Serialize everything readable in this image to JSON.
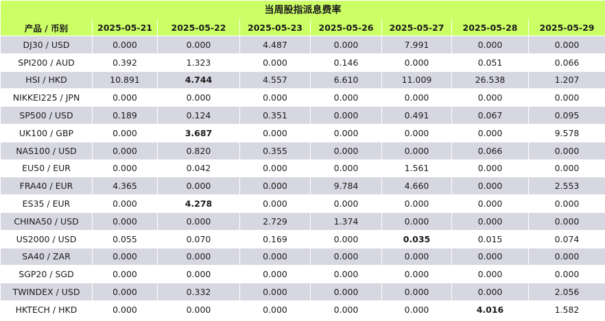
{
  "title": "当周股指派息费率",
  "columns": [
    "产品 / 币别",
    "2025-05-21",
    "2025-05-22",
    "2025-05-23",
    "2025-05-26",
    "2025-05-27",
    "2025-05-28",
    "2025-05-29"
  ],
  "rows": [
    {
      "product": "DJ30 / USD",
      "values": [
        "0.000",
        "0.000",
        "4.487",
        "0.000",
        "7.991",
        "0.000",
        "0.000"
      ],
      "bold": []
    },
    {
      "product": "SPI200 / AUD",
      "values": [
        "0.392",
        "1.323",
        "0.000",
        "0.146",
        "0.000",
        "0.051",
        "0.066"
      ],
      "bold": []
    },
    {
      "product": "HSI / HKD",
      "values": [
        "10.891",
        "4.744",
        "4.557",
        "6.610",
        "11.009",
        "26.538",
        "1.207"
      ],
      "bold": [
        1
      ]
    },
    {
      "product": "NIKKEI225 / JPN",
      "values": [
        "0.000",
        "0.000",
        "0.000",
        "0.000",
        "0.000",
        "0.000",
        "0.000"
      ],
      "bold": []
    },
    {
      "product": "SP500 / USD",
      "values": [
        "0.189",
        "0.124",
        "0.351",
        "0.000",
        "0.491",
        "0.067",
        "0.095"
      ],
      "bold": []
    },
    {
      "product": "UK100 / GBP",
      "values": [
        "0.000",
        "3.687",
        "0.000",
        "0.000",
        "0.000",
        "0.000",
        "9.578"
      ],
      "bold": [
        1
      ]
    },
    {
      "product": "NAS100 / USD",
      "values": [
        "0.000",
        "0.820",
        "0.355",
        "0.000",
        "0.000",
        "0.066",
        "0.000"
      ],
      "bold": []
    },
    {
      "product": "EU50 / EUR",
      "values": [
        "0.000",
        "0.042",
        "0.000",
        "0.000",
        "1.561",
        "0.000",
        "0.000"
      ],
      "bold": []
    },
    {
      "product": "FRA40 / EUR",
      "values": [
        "4.365",
        "0.000",
        "0.000",
        "9.784",
        "4.660",
        "0.000",
        "2.553"
      ],
      "bold": []
    },
    {
      "product": "ES35 / EUR",
      "values": [
        "0.000",
        "4.278",
        "0.000",
        "0.000",
        "0.000",
        "0.000",
        "0.000"
      ],
      "bold": [
        1
      ]
    },
    {
      "product": "CHINA50 / USD",
      "values": [
        "0.000",
        "0.000",
        "2.729",
        "1.374",
        "0.000",
        "0.000",
        "0.000"
      ],
      "bold": []
    },
    {
      "product": "US2000 / USD",
      "values": [
        "0.055",
        "0.070",
        "0.169",
        "0.000",
        "0.035",
        "0.015",
        "0.074"
      ],
      "bold": [
        4
      ]
    },
    {
      "product": "SA40 / ZAR",
      "values": [
        "0.000",
        "0.000",
        "0.000",
        "0.000",
        "0.000",
        "0.000",
        "0.000"
      ],
      "bold": []
    },
    {
      "product": "SGP20 / SGD",
      "values": [
        "0.000",
        "0.000",
        "0.000",
        "0.000",
        "0.000",
        "0.000",
        "0.000"
      ],
      "bold": []
    },
    {
      "product": "TWINDEX / USD",
      "values": [
        "0.000",
        "0.332",
        "0.000",
        "0.000",
        "0.000",
        "0.000",
        "2.056"
      ],
      "bold": []
    },
    {
      "product": "HKTECH / HKD",
      "values": [
        "0.000",
        "0.000",
        "0.000",
        "0.000",
        "0.000",
        "4.016",
        "1.582"
      ],
      "bold": [
        5
      ]
    }
  ],
  "colors": {
    "header_bg": "#ccff66",
    "row_odd_bg": "#d7d7e2",
    "row_even_bg": "#ffffff"
  }
}
